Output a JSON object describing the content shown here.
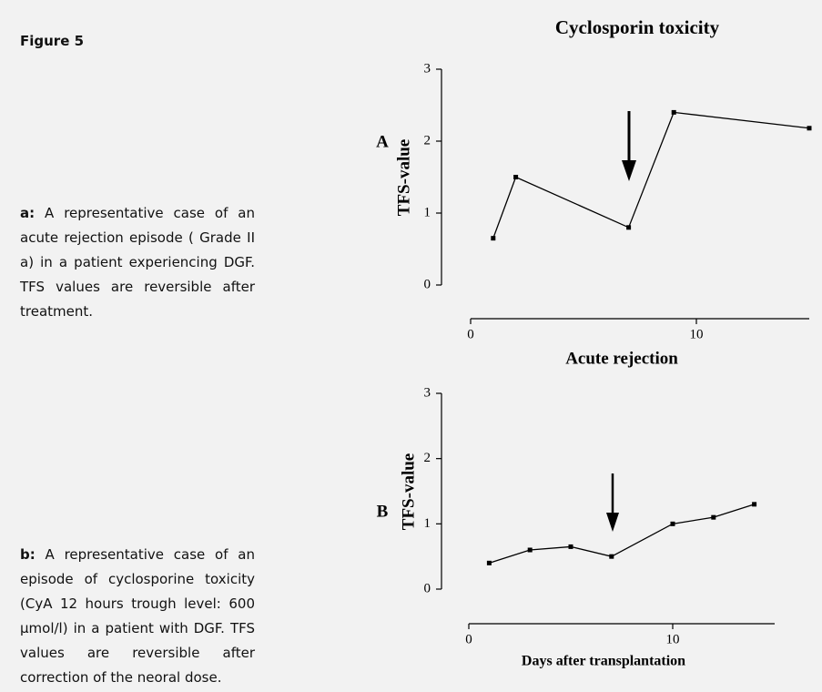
{
  "figure": {
    "label": "Figure 5",
    "captions": [
      {
        "label": "a:",
        "text": "A representative case of an acute rejection episode ( Grade II a) in a patient experiencing DGF. TFS values are reversible after treatment."
      },
      {
        "label": "b:",
        "text": "A representative case of an episode of cyclosporine toxicity (CyA 12 hours trough level: 600 μmol/l) in a patient with DGF. TFS values are reversible after correction of the neoral dose."
      }
    ]
  },
  "chart_data": [
    {
      "type": "line",
      "title": "Cyclosporin toxicity",
      "panel": "A",
      "ylabel": "TFS-value",
      "xlabel": "Acute rejection",
      "x": [
        1,
        2,
        7,
        9,
        15
      ],
      "series": [
        {
          "color": "#000000",
          "values": [
            0.65,
            1.5,
            0.8,
            2.4,
            2.18
          ]
        }
      ],
      "xlim": [
        0,
        15
      ],
      "xticks": [
        0,
        10
      ],
      "ylim": [
        0,
        3
      ],
      "yticks": [
        0,
        1,
        2,
        3
      ]
    },
    {
      "type": "line",
      "panel": "B",
      "ylabel": "TFS-value",
      "xlabel": "Days after transplantation",
      "x": [
        1,
        3,
        5,
        7,
        10,
        12,
        14
      ],
      "series": [
        {
          "color": "#000000",
          "values": [
            0.4,
            0.6,
            0.65,
            0.5,
            1.0,
            1.1,
            1.3
          ]
        }
      ],
      "xlim": [
        0,
        15
      ],
      "xticks": [
        0,
        10
      ],
      "ylim": [
        0,
        3
      ],
      "yticks": [
        0,
        1,
        2,
        3
      ]
    }
  ]
}
